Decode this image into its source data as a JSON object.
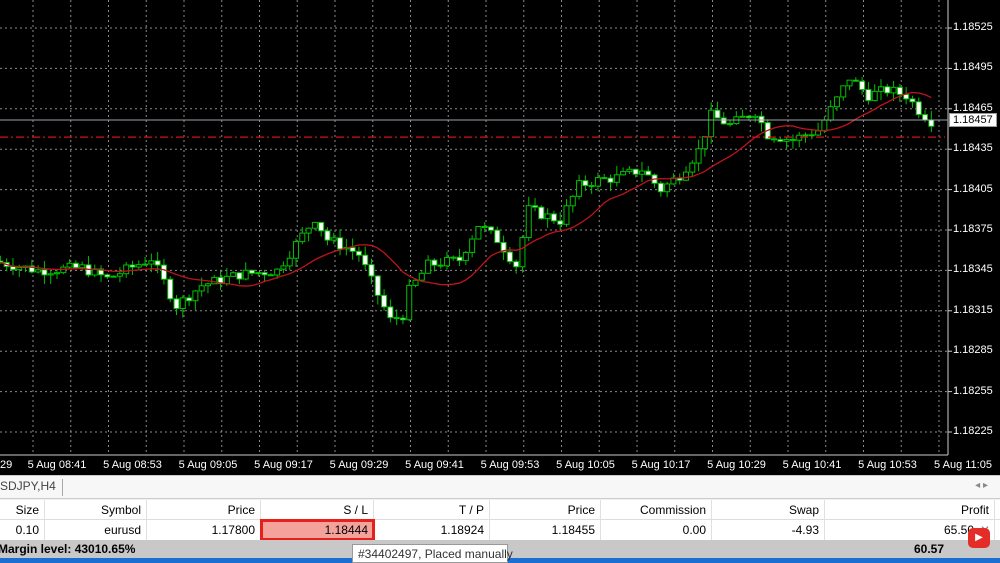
{
  "chart_data": {
    "type": "candlestick",
    "symbol_tab": "SDJPY,H4",
    "price_ticks": [
      "1.18525",
      "1.18495",
      "1.18465",
      "1.18435",
      "1.18405",
      "1.18375",
      "1.18345",
      "1.18315",
      "1.18285",
      "1.18255",
      "1.18225"
    ],
    "time_ticks": [
      "29",
      "5 Aug 08:41",
      "5 Aug 08:53",
      "5 Aug 09:05",
      "5 Aug 09:17",
      "5 Aug 09:29",
      "5 Aug 09:41",
      "5 Aug 09:53",
      "5 Aug 10:05",
      "5 Aug 10:17",
      "5 Aug 10:29",
      "5 Aug 10:41",
      "5 Aug 10:53",
      "5 Aug 11:05"
    ],
    "current_price": "1.18457",
    "stop_loss_level": 1.18444,
    "ylim": [
      1.1821,
      1.18545
    ],
    "grid": true,
    "colors": {
      "background": "#000000",
      "candle": "#00c000",
      "bear_body": "#ffffff",
      "ma": "#c0141c",
      "sl_line": "#d0141c",
      "grid": "#8a8a8a"
    },
    "close_path": [
      [
        "08:32",
        1.18351
      ],
      [
        "08:38",
        1.18345
      ],
      [
        "08:45",
        1.18347
      ],
      [
        "08:49",
        1.18339
      ],
      [
        "08:56",
        1.18354
      ],
      [
        "09:00",
        1.18319
      ],
      [
        "09:04",
        1.18334
      ],
      [
        "09:10",
        1.18342
      ],
      [
        "09:16",
        1.18345
      ],
      [
        "09:20",
        1.18371
      ],
      [
        "09:22",
        1.18384
      ],
      [
        "09:24",
        1.18368
      ],
      [
        "09:27",
        1.18362
      ],
      [
        "09:29",
        1.18357
      ],
      [
        "09:32",
        1.18327
      ],
      [
        "09:34",
        1.18308
      ],
      [
        "09:36",
        1.18312
      ],
      [
        "09:37",
        1.1833
      ],
      [
        "09:40",
        1.18349
      ],
      [
        "09:45",
        1.18353
      ],
      [
        "09:48",
        1.18379
      ],
      [
        "09:51",
        1.18368
      ],
      [
        "09:54",
        1.18349
      ],
      [
        "09:56",
        1.1839
      ],
      [
        "10:01",
        1.18382
      ],
      [
        "10:04",
        1.18408
      ],
      [
        "10:07",
        1.18412
      ],
      [
        "10:10",
        1.18414
      ],
      [
        "10:14",
        1.1842
      ],
      [
        "10:17",
        1.18405
      ],
      [
        "10:20",
        1.18416
      ],
      [
        "10:23",
        1.18434
      ],
      [
        "10:25",
        1.1846
      ],
      [
        "10:28",
        1.18453
      ],
      [
        "10:32",
        1.18463
      ],
      [
        "10:34",
        1.18446
      ],
      [
        "10:38",
        1.18442
      ],
      [
        "10:40",
        1.18446
      ],
      [
        "10:42",
        1.18449
      ],
      [
        "10:45",
        1.18472
      ],
      [
        "10:47",
        1.18488
      ],
      [
        "10:50",
        1.18475
      ],
      [
        "10:53",
        1.18479
      ],
      [
        "10:56",
        1.18475
      ],
      [
        "10:58",
        1.18464
      ],
      [
        "11:00",
        1.18456
      ]
    ]
  },
  "table": {
    "headers": [
      "Size",
      "Symbol",
      "Price",
      "S / L",
      "T / P",
      "Price",
      "Commission",
      "Swap",
      "Profit"
    ],
    "row": [
      "0.10",
      "eurusd",
      "1.17800",
      "1.18444",
      "1.18924",
      "1.18455",
      "0.00",
      "-4.93",
      "65.50"
    ],
    "summary_label": "Margin level: 43010.65%",
    "summary_value": "60.57"
  },
  "tooltip": "#34402497, Placed manually",
  "close_icon": "close-x-icon"
}
